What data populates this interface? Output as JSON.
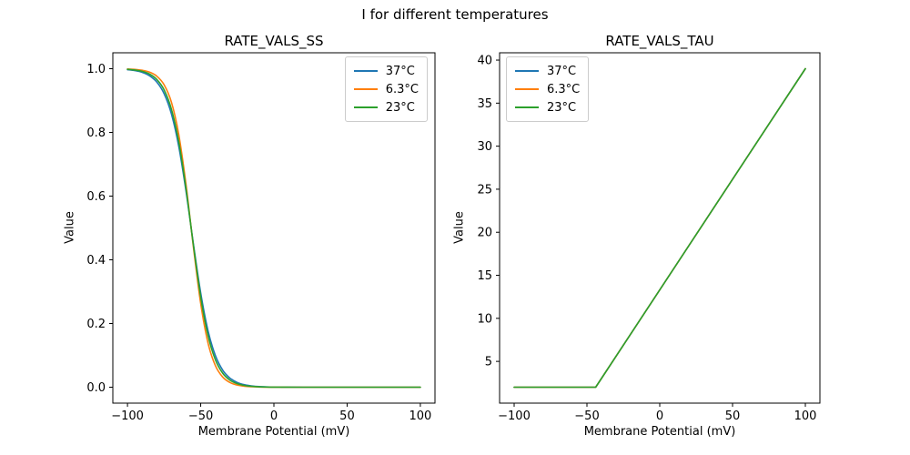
{
  "figure": {
    "suptitle": "I for different temperatures",
    "background": "#ffffff",
    "text_color": "#000000",
    "spine_color": "#000000"
  },
  "legend": {
    "entries": [
      {
        "label": "37°C",
        "color": "#1f77b4"
      },
      {
        "label": "6.3°C",
        "color": "#ff7f0e"
      },
      {
        "label": "23°C",
        "color": "#2ca02c"
      }
    ]
  },
  "chart_data": [
    {
      "type": "line",
      "title": "RATE_VALS_SS",
      "xlabel": "Membrane Potential (mV)",
      "ylabel": "Value",
      "xlim": [
        -110,
        110
      ],
      "ylim": [
        -0.05,
        1.05
      ],
      "xticks": [
        -100,
        -50,
        0,
        50,
        100
      ],
      "xtick_labels": [
        "−100",
        "−50",
        "0",
        "50",
        "100"
      ],
      "yticks": [
        0.0,
        0.2,
        0.4,
        0.6,
        0.8,
        1.0
      ],
      "ytick_labels": [
        "0.0",
        "0.2",
        "0.4",
        "0.6",
        "0.8",
        "1.0"
      ],
      "legend_position": "upper-right",
      "grid": false,
      "smooth": true,
      "x": [
        -100,
        -95,
        -90,
        -85,
        -80,
        -75,
        -70,
        -65,
        -60,
        -55,
        -50,
        -45,
        -40,
        -35,
        -30,
        -25,
        -20,
        -15,
        -10,
        -5,
        0,
        5,
        10,
        15,
        20,
        25,
        30,
        35,
        40,
        45,
        50,
        55,
        60,
        65,
        70,
        75,
        80,
        85,
        90,
        95,
        100
      ],
      "series": [
        {
          "name": "37°C",
          "color": "#1f77b4",
          "values": [
            0.997,
            0.9941,
            0.9887,
            0.9781,
            0.9582,
            0.9218,
            0.8582,
            0.7564,
            0.6146,
            0.4502,
            0.296,
            0.1775,
            0.0998,
            0.0538,
            0.0284,
            0.0148,
            0.0076,
            0.0039,
            0.002,
            0.001,
            0.0005,
            0.0003,
            0.0001,
            0.0001,
            0,
            0,
            0,
            0,
            0,
            0,
            0,
            0,
            0,
            0,
            0,
            0,
            0,
            0,
            0,
            0,
            0
          ]
        },
        {
          "name": "6.3°C",
          "color": "#ff7f0e",
          "values": [
            0.999,
            0.9978,
            0.9951,
            0.9893,
            0.9766,
            0.9496,
            0.895,
            0.794,
            0.6354,
            0.4408,
            0.2627,
            0.1388,
            0.0679,
            0.0319,
            0.0147,
            0.0067,
            0.003,
            0.0014,
            0.0006,
            0.0003,
            0.0001,
            0.0001,
            0,
            0,
            0,
            0,
            0,
            0,
            0,
            0,
            0,
            0,
            0,
            0,
            0,
            0,
            0,
            0,
            0,
            0,
            0
          ]
        },
        {
          "name": "23°C",
          "color": "#2ca02c",
          "values": [
            0.998,
            0.9959,
            0.9917,
            0.9832,
            0.9663,
            0.9336,
            0.8731,
            0.771,
            0.6225,
            0.4467,
            0.2832,
            0.1622,
            0.0865,
            0.0443,
            0.0222,
            0.011,
            0.0054,
            0.0027,
            0.0013,
            0.0006,
            0.0003,
            0.0002,
            0.0001,
            0,
            0,
            0,
            0,
            0,
            0,
            0,
            0,
            0,
            0,
            0,
            0,
            0,
            0,
            0,
            0,
            0,
            0
          ]
        }
      ]
    },
    {
      "type": "line",
      "title": "RATE_VALS_TAU",
      "xlabel": "Membrane Potential (mV)",
      "ylabel": "Value",
      "xlim": [
        -110,
        110
      ],
      "ylim": [
        0.15,
        40.85
      ],
      "xticks": [
        -100,
        -50,
        0,
        50,
        100
      ],
      "xtick_labels": [
        "−100",
        "−50",
        "0",
        "50",
        "100"
      ],
      "yticks": [
        5,
        10,
        15,
        20,
        25,
        30,
        35,
        40
      ],
      "ytick_labels": [
        "5",
        "10",
        "15",
        "20",
        "25",
        "30",
        "35",
        "40"
      ],
      "legend_position": "upper-left",
      "grid": false,
      "smooth": false,
      "x": [
        -100,
        -44,
        100
      ],
      "series": [
        {
          "name": "37°C",
          "color": "#1f77b4",
          "values": [
            2,
            2,
            39
          ]
        },
        {
          "name": "6.3°C",
          "color": "#ff7f0e",
          "values": [
            2,
            2,
            39
          ]
        },
        {
          "name": "23°C",
          "color": "#2ca02c",
          "values": [
            2,
            2,
            39
          ]
        }
      ]
    }
  ]
}
